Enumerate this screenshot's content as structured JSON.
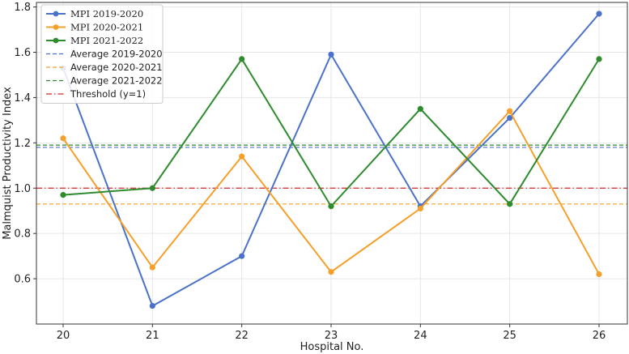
{
  "chart_data": {
    "type": "line",
    "title": "",
    "xlabel": "Hospital No.",
    "ylabel": "Malmquist Productivity Index",
    "categories": [
      "20",
      "21",
      "22",
      "23",
      "24",
      "25",
      "26"
    ],
    "ylim": [
      0.4,
      1.82
    ],
    "yticks": [
      "0.6",
      "0.8",
      "1.0",
      "1.2",
      "1.4",
      "1.6",
      "1.8"
    ],
    "grid": true,
    "legend_position": "top-left",
    "series": [
      {
        "name": "MPI 2019-2020",
        "color": "#4a72c8",
        "values": [
          1.53,
          0.48,
          0.7,
          1.59,
          0.92,
          1.31,
          1.77
        ]
      },
      {
        "name": "MPI 2020-2021",
        "color": "#f5a02a",
        "values": [
          1.22,
          0.65,
          1.14,
          0.63,
          0.91,
          1.34,
          0.62
        ]
      },
      {
        "name": "MPI 2021-2022",
        "color": "#2e8b2e",
        "values": [
          0.97,
          1.0,
          1.57,
          0.92,
          1.35,
          0.93,
          1.57
        ]
      }
    ],
    "reference_lines": [
      {
        "name": "Average 2019-2020",
        "color": "#4a72c8",
        "value": 1.18,
        "style": "dashed"
      },
      {
        "name": "Average 2020-2021",
        "color": "#f5a02a",
        "value": 0.93,
        "style": "dashed"
      },
      {
        "name": "Average 2021-2022",
        "color": "#2e8b2e",
        "value": 1.19,
        "style": "dashed"
      },
      {
        "name": "Threshold (y=1)",
        "color": "#d62728",
        "value": 1.0,
        "style": "dashdot"
      }
    ]
  }
}
